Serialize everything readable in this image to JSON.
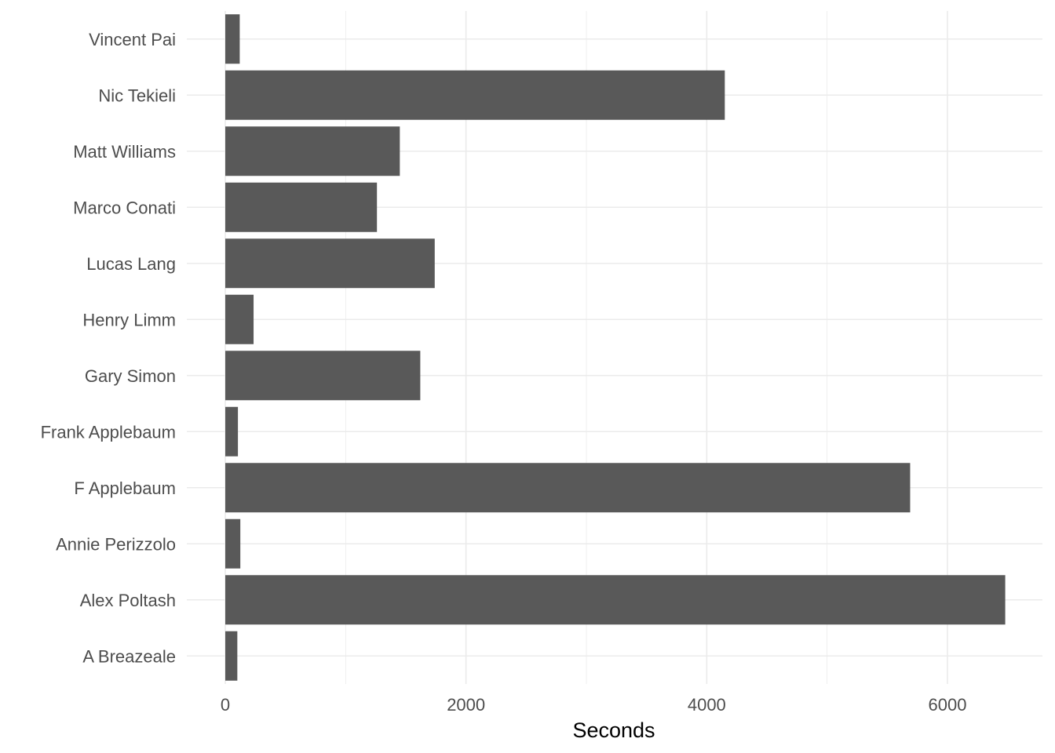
{
  "chart_data": {
    "type": "bar",
    "orientation": "horizontal",
    "categories": [
      "Vincent Pai",
      "Nic Tekieli",
      "Matt Williams",
      "Marco Conati",
      "Lucas Lang",
      "Henry Limm",
      "Gary Simon",
      "Frank Applebaum",
      "F Applebaum",
      "Annie Perizzolo",
      "Alex Poltash",
      "A Breazeale"
    ],
    "values": [
      120,
      4150,
      1450,
      1260,
      1740,
      235,
      1620,
      105,
      5690,
      125,
      6480,
      100
    ],
    "title": "",
    "xlabel": "Seconds",
    "ylabel": "",
    "xlim": [
      -330,
      6810
    ],
    "xticks": [
      0,
      2000,
      4000,
      6000
    ],
    "xtick_labels": [
      "0",
      "2000",
      "4000",
      "6000"
    ],
    "grid": true,
    "bar_color": "#595959",
    "grid_color": "#ebebeb"
  }
}
